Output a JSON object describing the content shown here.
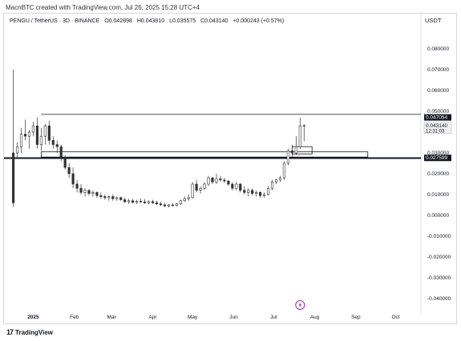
{
  "caption": "MacnBTC created with TradingView.com, Jul 26, 2025 15:28 UTC+4",
  "header": {
    "pair": "PENGU / TetherUS · 3D · BINANCE",
    "open": "O0.042898",
    "high": "H0.043810",
    "low": "L0.035575",
    "close": "C0.043140",
    "change": "+0.000243 (+0.57%)"
  },
  "unit_label": "USDT",
  "brand": "TradingView",
  "brand_mark": "17",
  "event_icon": "lightning-icon",
  "chart_data": {
    "type": "candlestick",
    "title": "",
    "ylim": [
      -0.045,
      0.09
    ],
    "y_ticks": [
      0.08,
      0.07,
      0.06,
      0.05,
      0.04,
      0.03,
      0.02,
      0.01,
      0.0,
      -0.01,
      -0.02,
      -0.03,
      -0.04
    ],
    "y_tick_labels": [
      "0.080000",
      "0.070000",
      "0.060000",
      "0.050000",
      "0.040000",
      "0.030000",
      "0.020000",
      "0.010000",
      "0.000000",
      "-0.010000",
      "-0.020000",
      "-0.030000",
      "-0.040000"
    ],
    "x_range": [
      "2024-12-10",
      "2025-10-20"
    ],
    "x_ticks": [
      {
        "date": "2025-01-01",
        "label": "2025",
        "bold": true
      },
      {
        "date": "2025-02-01",
        "label": "Feb"
      },
      {
        "date": "2025-03-01",
        "label": "Mar"
      },
      {
        "date": "2025-04-01",
        "label": "Apr"
      },
      {
        "date": "2025-05-01",
        "label": "May"
      },
      {
        "date": "2025-06-01",
        "label": "Jun"
      },
      {
        "date": "2025-07-01",
        "label": "Jul"
      },
      {
        "date": "2025-08-01",
        "label": "Aug"
      },
      {
        "date": "2025-09-01",
        "label": "Sep"
      },
      {
        "date": "2025-10-01",
        "label": "Oct"
      }
    ],
    "candles": [
      {
        "d": "2024-12-17",
        "o": 0.03,
        "h": 0.07,
        "l": 0.004,
        "c": 0.006
      },
      {
        "d": "2024-12-20",
        "o": 0.03,
        "h": 0.035,
        "l": 0.027,
        "c": 0.033
      },
      {
        "d": "2024-12-23",
        "o": 0.033,
        "h": 0.042,
        "l": 0.03,
        "c": 0.039
      },
      {
        "d": "2024-12-26",
        "o": 0.039,
        "h": 0.046,
        "l": 0.036,
        "c": 0.038
      },
      {
        "d": "2024-12-29",
        "o": 0.038,
        "h": 0.041,
        "l": 0.032,
        "c": 0.04
      },
      {
        "d": "2025-01-01",
        "o": 0.04,
        "h": 0.045,
        "l": 0.038,
        "c": 0.043
      },
      {
        "d": "2025-01-04",
        "o": 0.043,
        "h": 0.047,
        "l": 0.032,
        "c": 0.034
      },
      {
        "d": "2025-01-07",
        "o": 0.034,
        "h": 0.042,
        "l": 0.031,
        "c": 0.038
      },
      {
        "d": "2025-01-10",
        "o": 0.038,
        "h": 0.044,
        "l": 0.034,
        "c": 0.043
      },
      {
        "d": "2025-01-13",
        "o": 0.043,
        "h": 0.0455,
        "l": 0.034,
        "c": 0.036
      },
      {
        "d": "2025-01-16",
        "o": 0.036,
        "h": 0.038,
        "l": 0.032,
        "c": 0.034
      },
      {
        "d": "2025-01-19",
        "o": 0.034,
        "h": 0.036,
        "l": 0.03,
        "c": 0.033
      },
      {
        "d": "2025-01-22",
        "o": 0.033,
        "h": 0.034,
        "l": 0.026,
        "c": 0.028
      },
      {
        "d": "2025-01-25",
        "o": 0.028,
        "h": 0.029,
        "l": 0.022,
        "c": 0.023
      },
      {
        "d": "2025-01-28",
        "o": 0.023,
        "h": 0.025,
        "l": 0.018,
        "c": 0.02
      },
      {
        "d": "2025-01-31",
        "o": 0.02,
        "h": 0.023,
        "l": 0.013,
        "c": 0.015
      },
      {
        "d": "2025-02-03",
        "o": 0.015,
        "h": 0.017,
        "l": 0.011,
        "c": 0.013
      },
      {
        "d": "2025-02-06",
        "o": 0.013,
        "h": 0.015,
        "l": 0.01,
        "c": 0.011
      },
      {
        "d": "2025-02-09",
        "o": 0.011,
        "h": 0.013,
        "l": 0.009,
        "c": 0.012
      },
      {
        "d": "2025-02-12",
        "o": 0.012,
        "h": 0.0125,
        "l": 0.0095,
        "c": 0.0105
      },
      {
        "d": "2025-02-15",
        "o": 0.0105,
        "h": 0.012,
        "l": 0.009,
        "c": 0.011
      },
      {
        "d": "2025-02-18",
        "o": 0.011,
        "h": 0.0115,
        "l": 0.0085,
        "c": 0.0095
      },
      {
        "d": "2025-02-21",
        "o": 0.0095,
        "h": 0.011,
        "l": 0.008,
        "c": 0.009
      },
      {
        "d": "2025-02-24",
        "o": 0.009,
        "h": 0.01,
        "l": 0.0075,
        "c": 0.0085
      },
      {
        "d": "2025-02-27",
        "o": 0.0085,
        "h": 0.0095,
        "l": 0.007,
        "c": 0.009
      },
      {
        "d": "2025-03-02",
        "o": 0.009,
        "h": 0.01,
        "l": 0.007,
        "c": 0.008
      },
      {
        "d": "2025-03-05",
        "o": 0.008,
        "h": 0.009,
        "l": 0.007,
        "c": 0.0085
      },
      {
        "d": "2025-03-08",
        "o": 0.0085,
        "h": 0.009,
        "l": 0.007,
        "c": 0.0075
      },
      {
        "d": "2025-03-11",
        "o": 0.0075,
        "h": 0.0085,
        "l": 0.006,
        "c": 0.0065
      },
      {
        "d": "2025-03-14",
        "o": 0.0065,
        "h": 0.008,
        "l": 0.0055,
        "c": 0.007
      },
      {
        "d": "2025-03-17",
        "o": 0.007,
        "h": 0.008,
        "l": 0.0058,
        "c": 0.0062
      },
      {
        "d": "2025-03-20",
        "o": 0.0062,
        "h": 0.0075,
        "l": 0.0055,
        "c": 0.0068
      },
      {
        "d": "2025-03-23",
        "o": 0.0068,
        "h": 0.008,
        "l": 0.006,
        "c": 0.0065
      },
      {
        "d": "2025-03-26",
        "o": 0.0065,
        "h": 0.0078,
        "l": 0.0055,
        "c": 0.006
      },
      {
        "d": "2025-03-29",
        "o": 0.006,
        "h": 0.0072,
        "l": 0.0052,
        "c": 0.0066
      },
      {
        "d": "2025-04-01",
        "o": 0.0066,
        "h": 0.0075,
        "l": 0.0055,
        "c": 0.006
      },
      {
        "d": "2025-04-04",
        "o": 0.006,
        "h": 0.007,
        "l": 0.005,
        "c": 0.0055
      },
      {
        "d": "2025-04-07",
        "o": 0.0055,
        "h": 0.0065,
        "l": 0.0045,
        "c": 0.005
      },
      {
        "d": "2025-04-10",
        "o": 0.005,
        "h": 0.006,
        "l": 0.004,
        "c": 0.0045
      },
      {
        "d": "2025-04-13",
        "o": 0.0045,
        "h": 0.0055,
        "l": 0.0038,
        "c": 0.005
      },
      {
        "d": "2025-04-16",
        "o": 0.005,
        "h": 0.0058,
        "l": 0.0042,
        "c": 0.0047
      },
      {
        "d": "2025-04-19",
        "o": 0.0047,
        "h": 0.006,
        "l": 0.0042,
        "c": 0.0055
      },
      {
        "d": "2025-04-22",
        "o": 0.0055,
        "h": 0.0075,
        "l": 0.005,
        "c": 0.007
      },
      {
        "d": "2025-04-25",
        "o": 0.007,
        "h": 0.009,
        "l": 0.0065,
        "c": 0.008
      },
      {
        "d": "2025-04-28",
        "o": 0.008,
        "h": 0.01,
        "l": 0.007,
        "c": 0.0085
      },
      {
        "d": "2025-05-01",
        "o": 0.0085,
        "h": 0.016,
        "l": 0.008,
        "c": 0.015
      },
      {
        "d": "2025-05-04",
        "o": 0.015,
        "h": 0.017,
        "l": 0.011,
        "c": 0.012
      },
      {
        "d": "2025-05-07",
        "o": 0.012,
        "h": 0.014,
        "l": 0.0105,
        "c": 0.013
      },
      {
        "d": "2025-05-10",
        "o": 0.013,
        "h": 0.016,
        "l": 0.012,
        "c": 0.015
      },
      {
        "d": "2025-05-13",
        "o": 0.015,
        "h": 0.019,
        "l": 0.014,
        "c": 0.018
      },
      {
        "d": "2025-05-16",
        "o": 0.018,
        "h": 0.0185,
        "l": 0.015,
        "c": 0.016
      },
      {
        "d": "2025-05-19",
        "o": 0.016,
        "h": 0.02,
        "l": 0.015,
        "c": 0.0175
      },
      {
        "d": "2025-05-22",
        "o": 0.0175,
        "h": 0.019,
        "l": 0.016,
        "c": 0.017
      },
      {
        "d": "2025-05-25",
        "o": 0.017,
        "h": 0.018,
        "l": 0.0155,
        "c": 0.0165
      },
      {
        "d": "2025-05-28",
        "o": 0.0165,
        "h": 0.017,
        "l": 0.014,
        "c": 0.015
      },
      {
        "d": "2025-05-31",
        "o": 0.015,
        "h": 0.016,
        "l": 0.012,
        "c": 0.013
      },
      {
        "d": "2025-06-03",
        "o": 0.013,
        "h": 0.016,
        "l": 0.012,
        "c": 0.015
      },
      {
        "d": "2025-06-06",
        "o": 0.015,
        "h": 0.0155,
        "l": 0.011,
        "c": 0.012
      },
      {
        "d": "2025-06-09",
        "o": 0.012,
        "h": 0.014,
        "l": 0.01,
        "c": 0.011
      },
      {
        "d": "2025-06-12",
        "o": 0.011,
        "h": 0.013,
        "l": 0.009,
        "c": 0.012
      },
      {
        "d": "2025-06-15",
        "o": 0.012,
        "h": 0.013,
        "l": 0.0095,
        "c": 0.0105
      },
      {
        "d": "2025-06-18",
        "o": 0.0105,
        "h": 0.012,
        "l": 0.009,
        "c": 0.011
      },
      {
        "d": "2025-06-21",
        "o": 0.011,
        "h": 0.0115,
        "l": 0.0085,
        "c": 0.0095
      },
      {
        "d": "2025-06-24",
        "o": 0.0095,
        "h": 0.011,
        "l": 0.0085,
        "c": 0.01
      },
      {
        "d": "2025-06-27",
        "o": 0.01,
        "h": 0.014,
        "l": 0.0095,
        "c": 0.013
      },
      {
        "d": "2025-06-30",
        "o": 0.013,
        "h": 0.017,
        "l": 0.012,
        "c": 0.016
      },
      {
        "d": "2025-07-03",
        "o": 0.016,
        "h": 0.0175,
        "l": 0.015,
        "c": 0.017
      },
      {
        "d": "2025-07-06",
        "o": 0.017,
        "h": 0.019,
        "l": 0.016,
        "c": 0.018
      },
      {
        "d": "2025-07-09",
        "o": 0.018,
        "h": 0.026,
        "l": 0.017,
        "c": 0.025
      },
      {
        "d": "2025-07-12",
        "o": 0.025,
        "h": 0.032,
        "l": 0.024,
        "c": 0.031
      },
      {
        "d": "2025-07-15",
        "o": 0.031,
        "h": 0.034,
        "l": 0.028,
        "c": 0.03
      },
      {
        "d": "2025-07-18",
        "o": 0.03,
        "h": 0.038,
        "l": 0.029,
        "c": 0.033
      },
      {
        "d": "2025-07-21",
        "o": 0.033,
        "h": 0.047,
        "l": 0.032,
        "c": 0.043
      },
      {
        "d": "2025-07-24",
        "o": 0.043,
        "h": 0.0438,
        "l": 0.0356,
        "c": 0.0431
      }
    ],
    "lines": [
      {
        "type": "horizontal",
        "y": 0.0485,
        "from": "2025-01-07",
        "to": "2025-10-20"
      },
      {
        "type": "horizontal",
        "y": 0.0275,
        "from": "2024-12-10",
        "to": "2025-10-20",
        "thick": true
      },
      {
        "type": "box",
        "y_top": 0.0305,
        "y_bottom": 0.028,
        "from": "2025-01-07",
        "to": "2025-09-10"
      },
      {
        "type": "box",
        "y_top": 0.033,
        "y_bottom": 0.0295,
        "from": "2025-07-15",
        "to": "2025-07-30"
      }
    ],
    "price_tags": [
      {
        "y": 0.047054,
        "label": "0.047054",
        "style": "dark"
      },
      {
        "y": 0.04314,
        "label": "0.043140",
        "sub": "12:31:03",
        "style": "grey"
      },
      {
        "y": 0.027599,
        "label": "0.027599",
        "style": "dark"
      }
    ]
  }
}
